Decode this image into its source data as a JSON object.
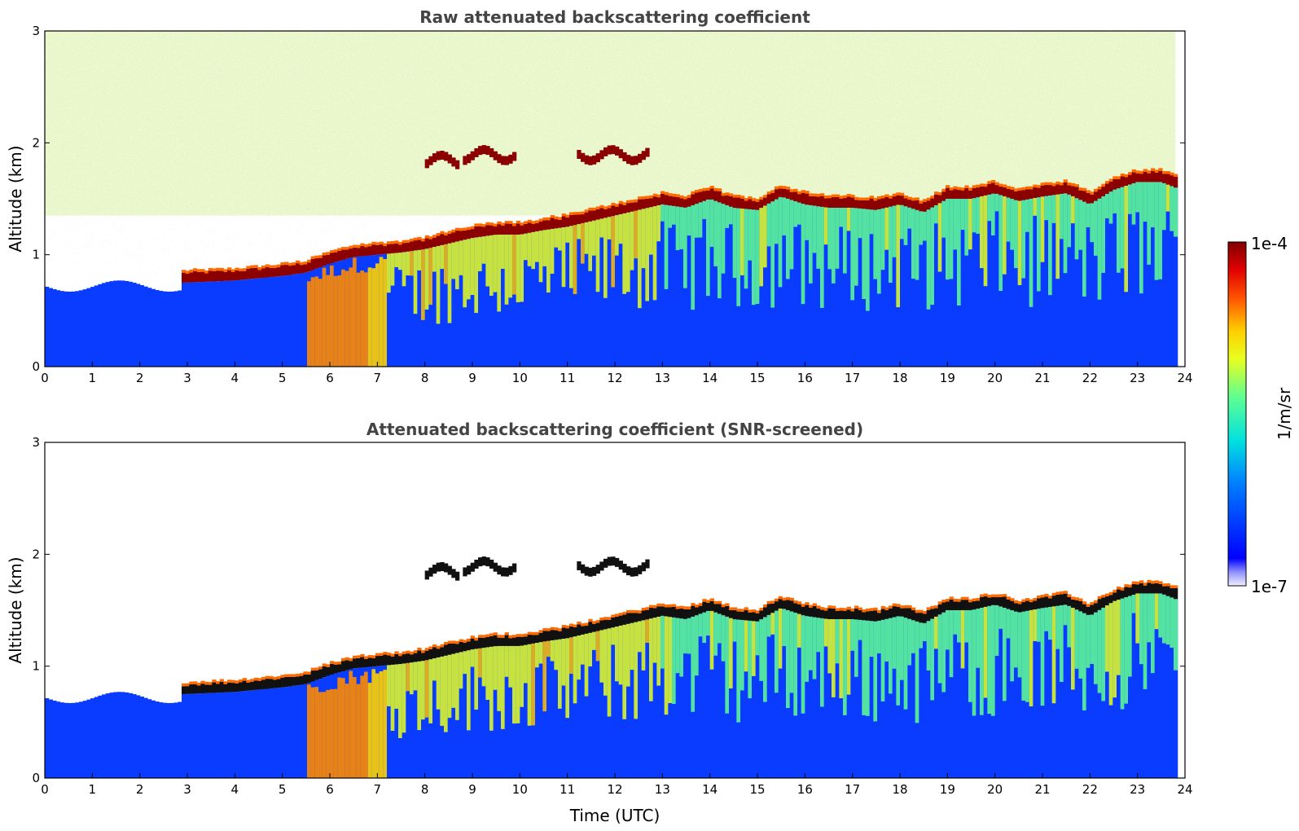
{
  "chart_data": [
    {
      "type": "heatmap",
      "title": "Raw attenuated backscattering coefficient",
      "xlabel": "",
      "ylabel": "Altitude (km)",
      "xlim": [
        0,
        24
      ],
      "ylim": [
        0,
        3
      ],
      "xticks": [
        "0",
        "1",
        "2",
        "3",
        "4",
        "5",
        "6",
        "7",
        "8",
        "9",
        "10",
        "11",
        "12",
        "13",
        "14",
        "15",
        "16",
        "17",
        "18",
        "19",
        "20",
        "21",
        "22",
        "23",
        "24"
      ],
      "yticks": [
        "0",
        "1",
        "2",
        "3"
      ],
      "screened": false,
      "cloud_base_km": {
        "time_utc": [
          2.9,
          3.5,
          4.0,
          4.5,
          5.0,
          5.5,
          6.0,
          6.5,
          7.0,
          7.5,
          8.0,
          8.5,
          9.0,
          9.5,
          10.0,
          10.5,
          11.0,
          11.5,
          12.0,
          12.5,
          13.0,
          13.5,
          14.0,
          14.5,
          15.0,
          15.5,
          16.0,
          16.5,
          17.0,
          17.5,
          18.0,
          18.5,
          19.0,
          19.5,
          20.0,
          20.5,
          21.0,
          21.5,
          22.0,
          22.5,
          23.0,
          23.5,
          23.8
        ],
        "altitude_km": [
          0.75,
          0.76,
          0.77,
          0.79,
          0.81,
          0.84,
          0.92,
          0.98,
          1.0,
          1.02,
          1.05,
          1.1,
          1.15,
          1.18,
          1.18,
          1.22,
          1.25,
          1.3,
          1.35,
          1.4,
          1.45,
          1.42,
          1.5,
          1.42,
          1.4,
          1.52,
          1.45,
          1.42,
          1.42,
          1.4,
          1.45,
          1.38,
          1.5,
          1.5,
          1.55,
          1.48,
          1.52,
          1.55,
          1.45,
          1.58,
          1.65,
          1.65,
          1.6
        ]
      },
      "elevated_layers": [
        {
          "t_start": 8.0,
          "t_end": 8.7,
          "altitude_km": 1.8
        },
        {
          "t_start": 8.8,
          "t_end": 9.9,
          "altitude_km": 1.85
        },
        {
          "t_start": 11.2,
          "t_end": 12.7,
          "altitude_km": 1.85
        }
      ]
    },
    {
      "type": "heatmap",
      "title": "Attenuated backscattering coefficient (SNR-screened)",
      "xlabel": "Time (UTC)",
      "ylabel": "Altitude (km)",
      "xlim": [
        0,
        24
      ],
      "ylim": [
        0,
        3
      ],
      "xticks": [
        "0",
        "1",
        "2",
        "3",
        "4",
        "5",
        "6",
        "7",
        "8",
        "9",
        "10",
        "11",
        "12",
        "13",
        "14",
        "15",
        "16",
        "17",
        "18",
        "19",
        "20",
        "21",
        "22",
        "23",
        "24"
      ],
      "yticks": [
        "0",
        "1",
        "2",
        "3"
      ],
      "screened": true
    }
  ],
  "colorbar": {
    "label": "1/m/sr",
    "max_label": "1e-4",
    "min_label": "1e-7",
    "scale": "log",
    "range": [
      1e-07,
      0.0001
    ],
    "colormap": "jet"
  }
}
